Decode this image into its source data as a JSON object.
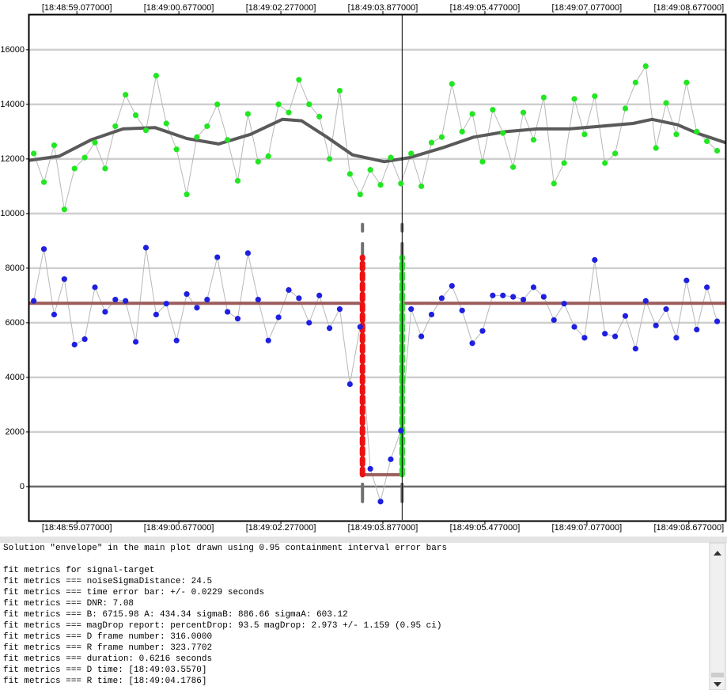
{
  "chart_data": {
    "type": "scatter",
    "xlim": [
      58.33,
      69.25
    ],
    "xticks": [
      {
        "value": 59.077,
        "label": "[18:48:59.077000]"
      },
      {
        "value": 60.677,
        "label": "[18:49:00.677000]"
      },
      {
        "value": 62.277,
        "label": "[18:49:02.277000]"
      },
      {
        "value": 63.877,
        "label": "[18:49:03.877000]"
      },
      {
        "value": 65.477,
        "label": "[18:49:05.477000]"
      },
      {
        "value": 67.077,
        "label": "[18:49:07.077000]"
      },
      {
        "value": 68.677,
        "label": "[18:49:08.677000]"
      }
    ],
    "ylim": [
      -1250,
      17300
    ],
    "yticks": [
      0,
      2000,
      4000,
      6000,
      8000,
      10000,
      12000,
      14000,
      16000
    ],
    "grid": true,
    "x": [
      58.4,
      58.56,
      58.72,
      58.88,
      59.04,
      59.2,
      59.36,
      59.52,
      59.68,
      59.84,
      60,
      60.16,
      60.32,
      60.48,
      60.64,
      60.8,
      60.96,
      61.12,
      61.28,
      61.44,
      61.6,
      61.76,
      61.92,
      62.08,
      62.24,
      62.4,
      62.56,
      62.72,
      62.88,
      63.04,
      63.2,
      63.36,
      63.52,
      63.68,
      63.84,
      64,
      64.16,
      64.32,
      64.48,
      64.64,
      64.8,
      64.96,
      65.12,
      65.28,
      65.44,
      65.6,
      65.76,
      65.92,
      66.08,
      66.24,
      66.4,
      66.56,
      66.72,
      66.88,
      67.04,
      67.2,
      67.36,
      67.52,
      67.68,
      67.84,
      68,
      68.16,
      68.32,
      68.48,
      68.64,
      68.8,
      68.96,
      69.12
    ],
    "series": [
      {
        "color": "#22e622",
        "line_color": "#b8b8b8",
        "values": [
          12200,
          11150,
          12500,
          10150,
          11650,
          12050,
          12600,
          11650,
          13200,
          14350,
          13600,
          13050,
          15050,
          13300,
          12350,
          10700,
          12800,
          13200,
          14000,
          12700,
          11200,
          13650,
          11900,
          12100,
          14000,
          13700,
          14900,
          14000,
          13550,
          12000,
          14500,
          11450,
          10700,
          11600,
          11050,
          12050,
          11100,
          12200,
          11000,
          12600,
          12800,
          14750,
          13000,
          13650,
          11900,
          13800,
          12950,
          11700,
          13700,
          12700,
          14250,
          11100,
          11850,
          14200,
          12900,
          14300,
          11850,
          12200,
          13850,
          14800,
          15400,
          12400,
          14050,
          12900,
          14800,
          13000,
          12650,
          12300
        ]
      },
      {
        "color": "#1f1fe0",
        "line_color": "#b8b8b8",
        "values": [
          6800,
          8700,
          6300,
          7600,
          5200,
          5400,
          7300,
          6400,
          6850,
          6800,
          5300,
          8750,
          6300,
          6700,
          5350,
          7050,
          6550,
          6850,
          8400,
          6400,
          6150,
          8550,
          6850,
          5350,
          6200,
          7200,
          6900,
          6000,
          7000,
          5800,
          6500,
          3750,
          5850,
          650,
          -550,
          1000,
          2050,
          6500,
          5500,
          6300,
          6900,
          7350,
          6450,
          5250,
          5700,
          7000,
          7000,
          6950,
          6850,
          7300,
          6950,
          6100,
          6700,
          5850,
          5450,
          8300,
          5600,
          5500,
          6250,
          5050,
          6800,
          5900,
          6500,
          5450,
          7550,
          5750,
          7300,
          6050
        ]
      }
    ],
    "curves": [
      {
        "color": "#5a5a5a",
        "x": [
          58.33,
          58.8,
          59.3,
          59.8,
          60.3,
          60.8,
          61.3,
          61.8,
          62.3,
          62.6,
          63.0,
          63.4,
          63.9,
          64.3,
          64.8,
          65.3,
          65.8,
          66.3,
          66.8,
          67.3,
          67.8,
          68.1,
          68.5,
          68.8,
          69.25
        ],
        "values": [
          11950,
          12100,
          12700,
          13100,
          13150,
          12750,
          12550,
          12900,
          13450,
          13400,
          12800,
          12150,
          11900,
          12050,
          12400,
          12800,
          13000,
          13100,
          13100,
          13200,
          13300,
          13450,
          13250,
          12950,
          12600
        ]
      },
      {
        "color": "#9c5c5c",
        "x": [
          58.33,
          63.557,
          63.557,
          64.179,
          64.179,
          69.25
        ],
        "values": [
          6716,
          6716,
          434,
          434,
          6716,
          6716
        ]
      }
    ],
    "edges": [
      {
        "x": 63.557,
        "color": "#ee1111",
        "range": [
          434,
          8400
        ],
        "error_range": [
          -550,
          9600
        ]
      },
      {
        "x": 64.179,
        "color": "#22dd22",
        "range": [
          434,
          8400
        ],
        "error_range": [
          -550,
          9600
        ]
      }
    ],
    "cursor_x": 64.179
  },
  "log": {
    "header": "Solution \"envelope\" in the main plot drawn using 0.95 containment interval error bars",
    "lines": [
      "fit metrics for signal-target",
      "fit metrics === noiseSigmaDistance: 24.5",
      "fit metrics === time error bar: +/- 0.0229 seconds",
      "fit metrics === DNR: 7.08",
      "fit metrics === B: 6715.98 A: 434.34 sigmaB: 886.66 sigmaA: 603.12",
      "fit metrics === magDrop report: percentDrop: 93.5 magDrop: 2.973 +/- 1.159 (0.95 ci)",
      "fit metrics === D frame number: 316.0000",
      "fit metrics === R frame number: 323.7702",
      "fit metrics === duration: 0.6216 seconds",
      "fit metrics === D time: [18:49:03.5570]",
      "fit metrics === R time: [18:49:04.1786]"
    ]
  }
}
